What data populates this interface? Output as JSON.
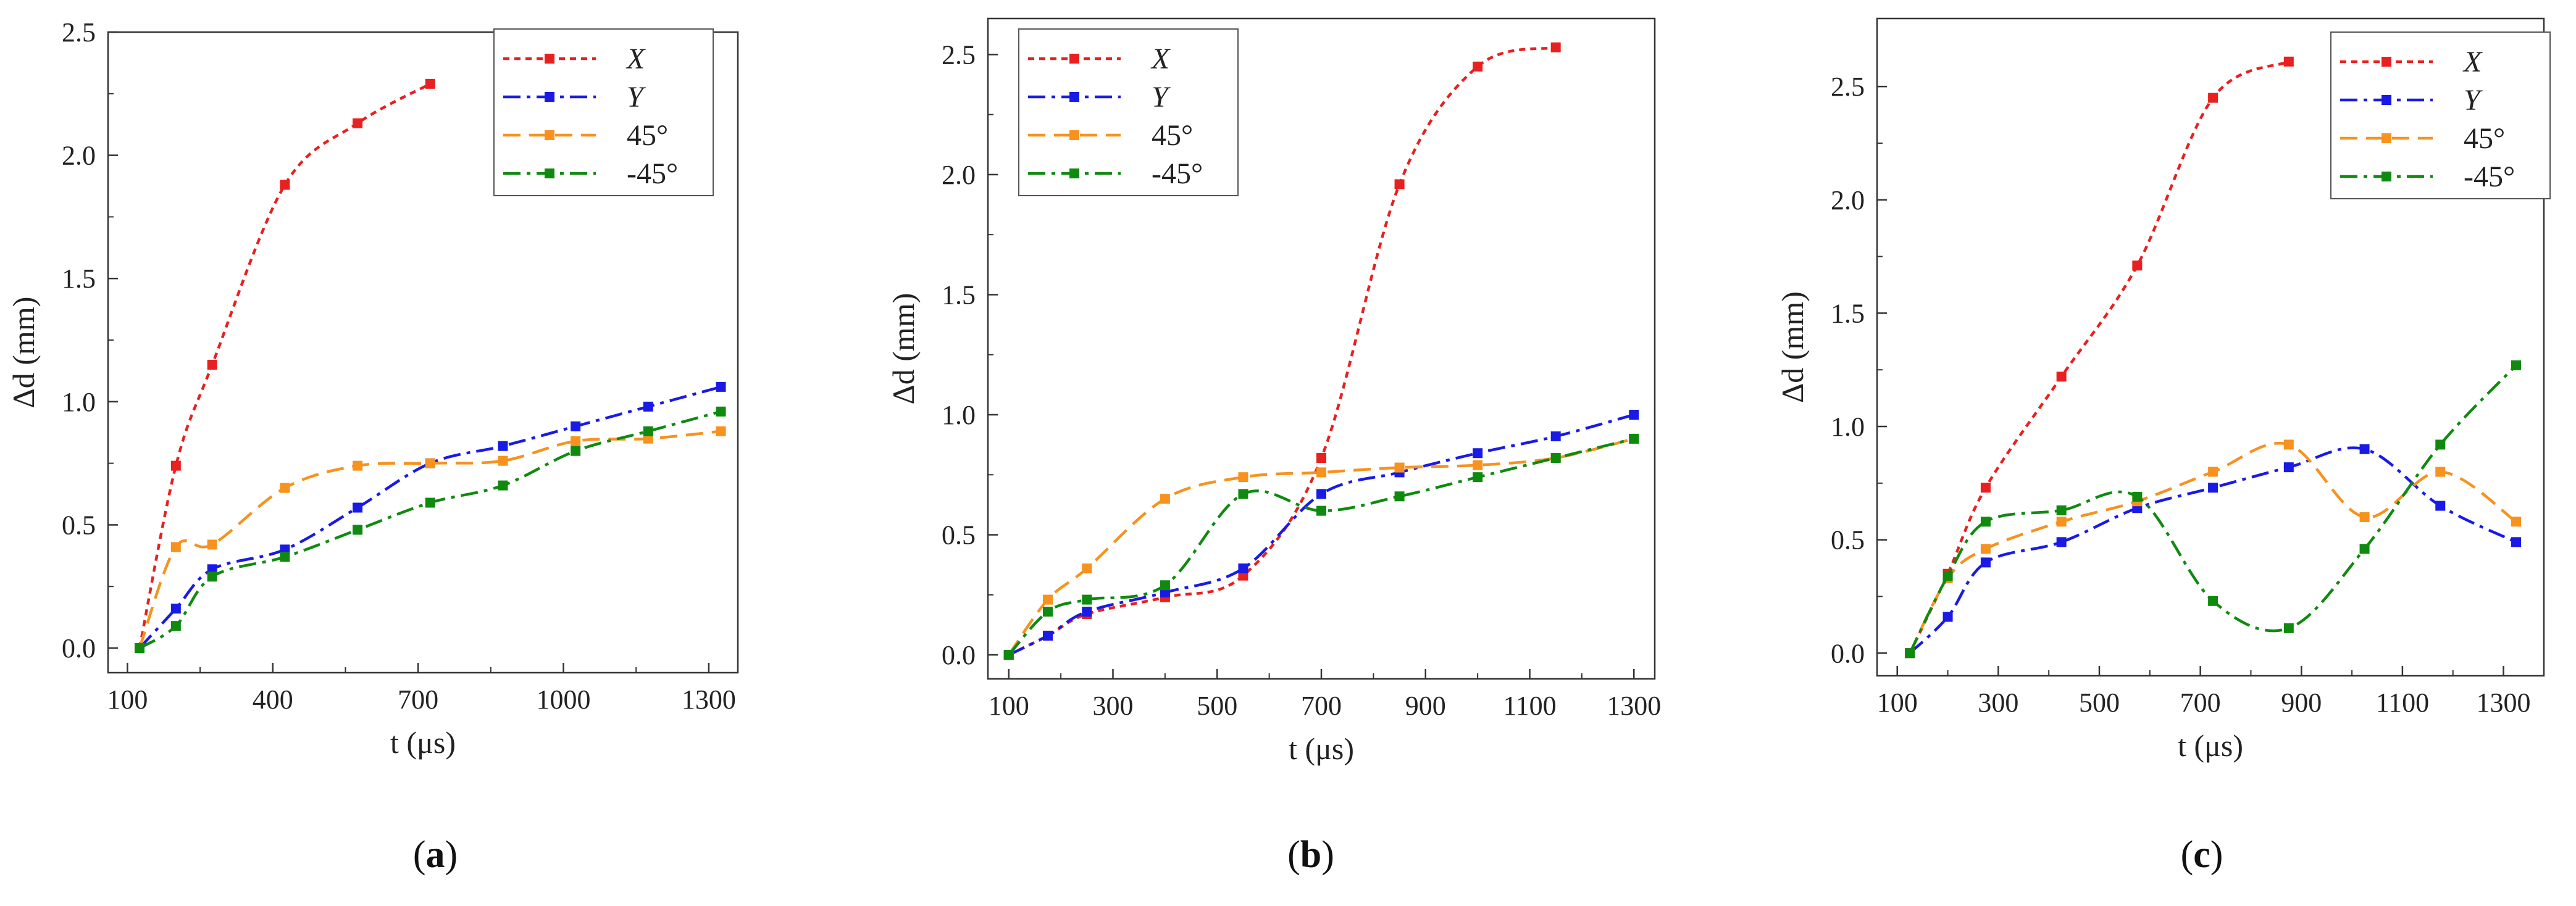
{
  "figure": {
    "captions": [
      "(a)",
      "(b)",
      "(c)"
    ],
    "caption_letters": [
      "a",
      "b",
      "c"
    ]
  },
  "chart_data": [
    {
      "type": "line",
      "panel": "a",
      "xlabel": "t (μs)",
      "ylabel": "Δd (mm)",
      "xlim": [
        60,
        1360
      ],
      "ylim": [
        -0.1,
        2.5
      ],
      "xticks": [
        100,
        400,
        700,
        1000,
        1300
      ],
      "yticks": [
        0.0,
        0.5,
        1.0,
        1.5,
        2.0,
        2.5
      ],
      "legend_position": "top-right",
      "series": [
        {
          "name": "X",
          "color": "#e8201f",
          "dash": "10,8",
          "x": [
            125,
            200,
            275,
            425,
            575,
            725
          ],
          "y": [
            0.0,
            0.74,
            1.15,
            1.88,
            2.13,
            2.29
          ]
        },
        {
          "name": "Y",
          "color": "#1a1ae6",
          "dash": "28,10,6,10",
          "x": [
            125,
            200,
            275,
            425,
            575,
            725,
            875,
            1025,
            1175,
            1325
          ],
          "y": [
            0.0,
            0.16,
            0.32,
            0.4,
            0.57,
            0.75,
            0.82,
            0.9,
            0.98,
            1.06
          ]
        },
        {
          "name": "45°",
          "color": "#f7921e",
          "dash": "28,14",
          "x": [
            125,
            200,
            275,
            425,
            575,
            725,
            875,
            1025,
            1175,
            1325
          ],
          "y": [
            0.0,
            0.41,
            0.42,
            0.65,
            0.74,
            0.75,
            0.76,
            0.84,
            0.85,
            0.88
          ]
        },
        {
          "name": "-45°",
          "color": "#0f8a0f",
          "dash": "28,10,6,10",
          "x": [
            125,
            200,
            275,
            425,
            575,
            725,
            875,
            1025,
            1175,
            1325
          ],
          "y": [
            0.0,
            0.09,
            0.29,
            0.37,
            0.48,
            0.59,
            0.66,
            0.8,
            0.88,
            0.96
          ]
        }
      ]
    },
    {
      "type": "line",
      "panel": "b",
      "xlabel": "t (μs)",
      "ylabel": "Δd (mm)",
      "xlim": [
        60,
        1340
      ],
      "ylim": [
        -0.1,
        2.65
      ],
      "xticks": [
        100,
        300,
        500,
        700,
        900,
        1100,
        1300
      ],
      "yticks": [
        0.0,
        0.5,
        1.0,
        1.5,
        2.0,
        2.5
      ],
      "legend_position": "top-left",
      "series": [
        {
          "name": "X",
          "color": "#e8201f",
          "dash": "10,8",
          "x": [
            100,
            175,
            250,
            400,
            550,
            700,
            850,
            1000,
            1150
          ],
          "y": [
            0.0,
            0.08,
            0.17,
            0.24,
            0.33,
            0.82,
            1.96,
            2.45,
            2.53
          ]
        },
        {
          "name": "Y",
          "color": "#1a1ae6",
          "dash": "28,10,6,10",
          "x": [
            100,
            175,
            250,
            400,
            550,
            700,
            850,
            1000,
            1150,
            1300
          ],
          "y": [
            0.0,
            0.08,
            0.18,
            0.26,
            0.36,
            0.67,
            0.76,
            0.84,
            0.91,
            1.0
          ]
        },
        {
          "name": "45°",
          "color": "#f7921e",
          "dash": "28,14",
          "x": [
            100,
            175,
            250,
            400,
            550,
            700,
            850,
            1000,
            1150,
            1300
          ],
          "y": [
            0.0,
            0.23,
            0.36,
            0.65,
            0.74,
            0.76,
            0.78,
            0.79,
            0.82,
            0.9
          ]
        },
        {
          "name": "-45°",
          "color": "#0f8a0f",
          "dash": "28,10,6,10",
          "x": [
            100,
            175,
            250,
            400,
            550,
            700,
            850,
            1000,
            1150,
            1300
          ],
          "y": [
            0.0,
            0.18,
            0.23,
            0.29,
            0.67,
            0.6,
            0.66,
            0.74,
            0.82,
            0.9
          ]
        }
      ]
    },
    {
      "type": "line",
      "panel": "c",
      "xlabel": "t (μs)",
      "ylabel": "Δd (mm)",
      "xlim": [
        60,
        1380
      ],
      "ylim": [
        -0.1,
        2.8
      ],
      "xticks": [
        100,
        300,
        500,
        700,
        900,
        1100,
        1300
      ],
      "yticks": [
        0.0,
        0.5,
        1.0,
        1.5,
        2.0,
        2.5
      ],
      "legend_position": "top-right",
      "series": [
        {
          "name": "X",
          "color": "#e8201f",
          "dash": "10,8",
          "x": [
            125,
            200,
            275,
            425,
            575,
            725,
            875
          ],
          "y": [
            0.0,
            0.35,
            0.73,
            1.22,
            1.71,
            2.45,
            2.61
          ]
        },
        {
          "name": "Y",
          "color": "#1a1ae6",
          "dash": "28,10,6,10",
          "x": [
            125,
            200,
            275,
            425,
            575,
            725,
            875,
            1025,
            1175,
            1325
          ],
          "y": [
            0.0,
            0.16,
            0.4,
            0.49,
            0.64,
            0.73,
            0.82,
            0.9,
            0.65,
            0.49
          ]
        },
        {
          "name": "45°",
          "color": "#f7921e",
          "dash": "28,14",
          "x": [
            125,
            200,
            275,
            425,
            575,
            725,
            875,
            1025,
            1175,
            1325
          ],
          "y": [
            0.0,
            0.33,
            0.46,
            0.58,
            0.67,
            0.8,
            0.92,
            0.6,
            0.8,
            0.58
          ]
        },
        {
          "name": "-45°",
          "color": "#0f8a0f",
          "dash": "28,10,6,10",
          "x": [
            125,
            200,
            275,
            425,
            575,
            725,
            875,
            1025,
            1175,
            1325
          ],
          "y": [
            0.0,
            0.34,
            0.58,
            0.63,
            0.69,
            0.23,
            0.11,
            0.46,
            0.92,
            1.27
          ]
        }
      ]
    }
  ]
}
